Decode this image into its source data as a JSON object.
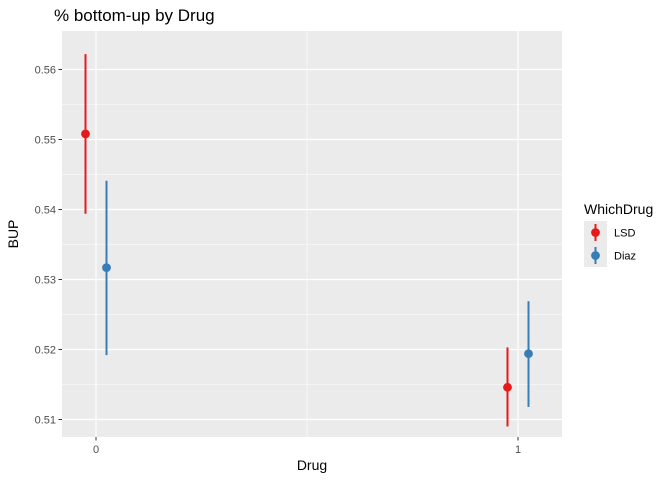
{
  "chart_data": {
    "type": "pointrange",
    "title": "% bottom-up by Drug",
    "xlabel": "Drug",
    "ylabel": "BUP",
    "categories": [
      "0",
      "1"
    ],
    "ylim": [
      0.5075,
      0.5655
    ],
    "yticks": [
      0.51,
      0.52,
      0.53,
      0.54,
      0.55,
      0.56
    ],
    "ytick_labels": [
      "0.51",
      "0.52",
      "0.53",
      "0.54",
      "0.55",
      "0.56"
    ],
    "grid": true,
    "legend": {
      "title": "WhichDrug",
      "placement": "right"
    },
    "series": [
      {
        "name": "LSD",
        "color": "#e41a1c",
        "points": [
          {
            "x": "0",
            "y": 0.5508,
            "ymin": 0.5394,
            "ymax": 0.5622
          },
          {
            "x": "1",
            "y": 0.5146,
            "ymin": 0.509,
            "ymax": 0.5203
          }
        ]
      },
      {
        "name": "Diaz",
        "color": "#377eb8",
        "points": [
          {
            "x": "0",
            "y": 0.5317,
            "ymin": 0.5192,
            "ymax": 0.5441
          },
          {
            "x": "1",
            "y": 0.5194,
            "ymin": 0.5118,
            "ymax": 0.5269
          }
        ]
      }
    ]
  }
}
